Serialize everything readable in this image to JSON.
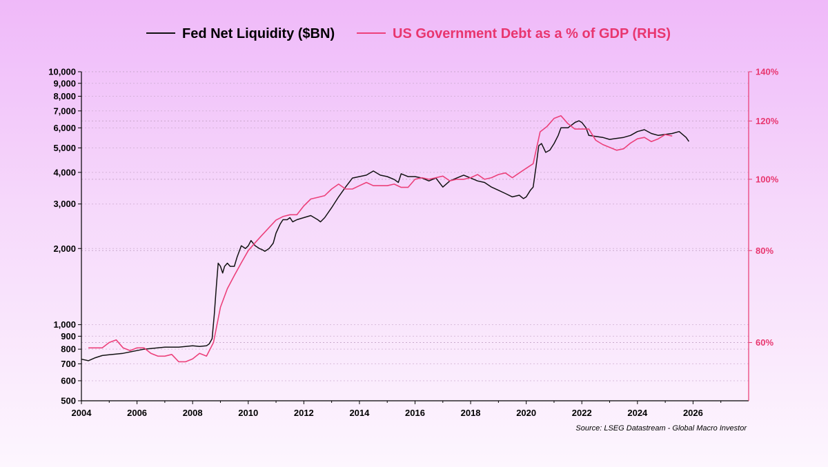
{
  "colors": {
    "liquidity": "#111111",
    "debt": "#ec407a",
    "debt_label": "#e8366f",
    "grid": "#c9a9cc"
  },
  "legend": {
    "liquidity_label": "Fed Net Liquidity ($BN)",
    "debt_label": "US Government Debt as a % of GDP (RHS)"
  },
  "source": "Source: LSEG Datastream - Global Macro Investor",
  "chart_data": {
    "type": "line",
    "title": "",
    "x_axis": {
      "range": [
        2004,
        2028
      ],
      "ticks": [
        2004,
        2006,
        2008,
        2010,
        2012,
        2014,
        2016,
        2018,
        2020,
        2022,
        2024,
        2026
      ]
    },
    "y_left": {
      "scale": "log",
      "range": [
        500,
        10000
      ],
      "ticks": [
        500,
        600,
        700,
        800,
        900,
        1000,
        2000,
        3000,
        4000,
        5000,
        6000,
        7000,
        8000,
        9000,
        10000
      ],
      "tick_labels": [
        "500",
        "600",
        "700",
        "800",
        "900",
        "1,000",
        "2,000",
        "3,000",
        "4,000",
        "5,000",
        "6,000",
        "7,000",
        "8,000",
        "9,000",
        "10,000"
      ]
    },
    "y_right": {
      "scale": "log",
      "range": [
        50,
        140
      ],
      "ticks": [
        60,
        80,
        100,
        120,
        140
      ],
      "tick_labels": [
        "60%",
        "80%",
        "100%",
        "120%",
        "140%"
      ]
    },
    "grid": "horizontal-dotted",
    "legend_position": "top",
    "series": [
      {
        "name": "Fed Net Liquidity ($BN)",
        "axis": "left",
        "x": [
          2004.0,
          2004.25,
          2004.5,
          2004.75,
          2005.0,
          2005.25,
          2005.5,
          2005.75,
          2006.0,
          2006.25,
          2006.5,
          2006.75,
          2007.0,
          2007.25,
          2007.5,
          2007.75,
          2008.0,
          2008.25,
          2008.5,
          2008.6,
          2008.7,
          2008.78,
          2008.85,
          2008.92,
          2009.0,
          2009.08,
          2009.15,
          2009.25,
          2009.35,
          2009.5,
          2009.6,
          2009.75,
          2009.9,
          2010.0,
          2010.1,
          2010.25,
          2010.4,
          2010.5,
          2010.6,
          2010.75,
          2010.9,
          2011.0,
          2011.15,
          2011.25,
          2011.4,
          2011.5,
          2011.6,
          2011.75,
          2012.0,
          2012.25,
          2012.5,
          2012.6,
          2012.75,
          2013.0,
          2013.25,
          2013.5,
          2013.75,
          2014.0,
          2014.25,
          2014.5,
          2014.75,
          2015.0,
          2015.25,
          2015.4,
          2015.5,
          2015.75,
          2016.0,
          2016.25,
          2016.5,
          2016.75,
          2017.0,
          2017.25,
          2017.5,
          2017.75,
          2018.0,
          2018.25,
          2018.5,
          2018.75,
          2019.0,
          2019.25,
          2019.5,
          2019.75,
          2019.9,
          2020.0,
          2020.15,
          2020.25,
          2020.35,
          2020.45,
          2020.55,
          2020.7,
          2020.85,
          2021.0,
          2021.15,
          2021.25,
          2021.5,
          2021.75,
          2021.9,
          2022.0,
          2022.15,
          2022.25,
          2022.5,
          2022.75,
          2023.0,
          2023.25,
          2023.5,
          2023.75,
          2024.0,
          2024.25,
          2024.5,
          2024.75,
          2025.0,
          2025.25,
          2025.5,
          2025.75,
          2025.85
        ],
        "y": [
          730,
          720,
          740,
          755,
          760,
          765,
          770,
          780,
          790,
          800,
          805,
          810,
          815,
          815,
          815,
          820,
          825,
          820,
          825,
          840,
          880,
          1100,
          1400,
          1750,
          1700,
          1600,
          1700,
          1750,
          1700,
          1700,
          1850,
          2050,
          2000,
          2050,
          2150,
          2050,
          2000,
          1980,
          1950,
          2000,
          2100,
          2300,
          2500,
          2600,
          2600,
          2650,
          2550,
          2600,
          2650,
          2700,
          2600,
          2550,
          2650,
          2900,
          3200,
          3500,
          3800,
          3850,
          3900,
          4050,
          3900,
          3850,
          3750,
          3650,
          3950,
          3850,
          3850,
          3800,
          3700,
          3800,
          3500,
          3700,
          3800,
          3900,
          3800,
          3700,
          3650,
          3500,
          3400,
          3300,
          3200,
          3250,
          3150,
          3200,
          3400,
          3500,
          4200,
          5100,
          5200,
          4800,
          4900,
          5200,
          5600,
          6000,
          6000,
          6300,
          6400,
          6300,
          6000,
          5600,
          5550,
          5500,
          5400,
          5450,
          5500,
          5600,
          5800,
          5900,
          5700,
          5600,
          5650,
          5700,
          5800,
          5500,
          5300
        ]
      },
      {
        "name": "US Government Debt as a % of GDP (RHS)",
        "axis": "right",
        "x": [
          2004.25,
          2004.5,
          2004.75,
          2005.0,
          2005.25,
          2005.5,
          2005.75,
          2006.0,
          2006.25,
          2006.5,
          2006.75,
          2007.0,
          2007.25,
          2007.5,
          2007.75,
          2008.0,
          2008.25,
          2008.5,
          2008.75,
          2009.0,
          2009.25,
          2009.5,
          2009.75,
          2010.0,
          2010.25,
          2010.5,
          2010.75,
          2011.0,
          2011.25,
          2011.5,
          2011.75,
          2012.0,
          2012.25,
          2012.5,
          2012.75,
          2013.0,
          2013.25,
          2013.5,
          2013.75,
          2014.0,
          2014.25,
          2014.5,
          2014.75,
          2015.0,
          2015.25,
          2015.5,
          2015.75,
          2016.0,
          2016.25,
          2016.5,
          2016.75,
          2017.0,
          2017.25,
          2017.5,
          2017.75,
          2018.0,
          2018.25,
          2018.5,
          2018.75,
          2019.0,
          2019.25,
          2019.5,
          2019.75,
          2020.0,
          2020.25,
          2020.5,
          2020.75,
          2021.0,
          2021.25,
          2021.5,
          2021.75,
          2022.0,
          2022.25,
          2022.5,
          2022.75,
          2023.0,
          2023.25,
          2023.5,
          2023.75,
          2024.0,
          2024.25,
          2024.5,
          2024.75,
          2025.0,
          2025.25
        ],
        "y": [
          59,
          59,
          59,
          60,
          60.5,
          59,
          58.5,
          59,
          59,
          58,
          57.5,
          57.5,
          57.8,
          56.5,
          56.5,
          57,
          58,
          57.5,
          60,
          67,
          71,
          74,
          77,
          80,
          82,
          84,
          86,
          88,
          89,
          89.5,
          89.5,
          92,
          94,
          94.5,
          95,
          97,
          98.5,
          97,
          97,
          98,
          99,
          98,
          98,
          98,
          98.5,
          97.5,
          97.5,
          100,
          100.5,
          100,
          100.5,
          101,
          99.5,
          100,
          100,
          100.5,
          101.5,
          100,
          100.5,
          101.5,
          102,
          100.5,
          102,
          103.5,
          105,
          116,
          118,
          121,
          122,
          119,
          117,
          117,
          117,
          113,
          111.5,
          110.5,
          109.5,
          110,
          112,
          113.5,
          114,
          112.5,
          113.5,
          115,
          114.5
        ]
      }
    ]
  }
}
